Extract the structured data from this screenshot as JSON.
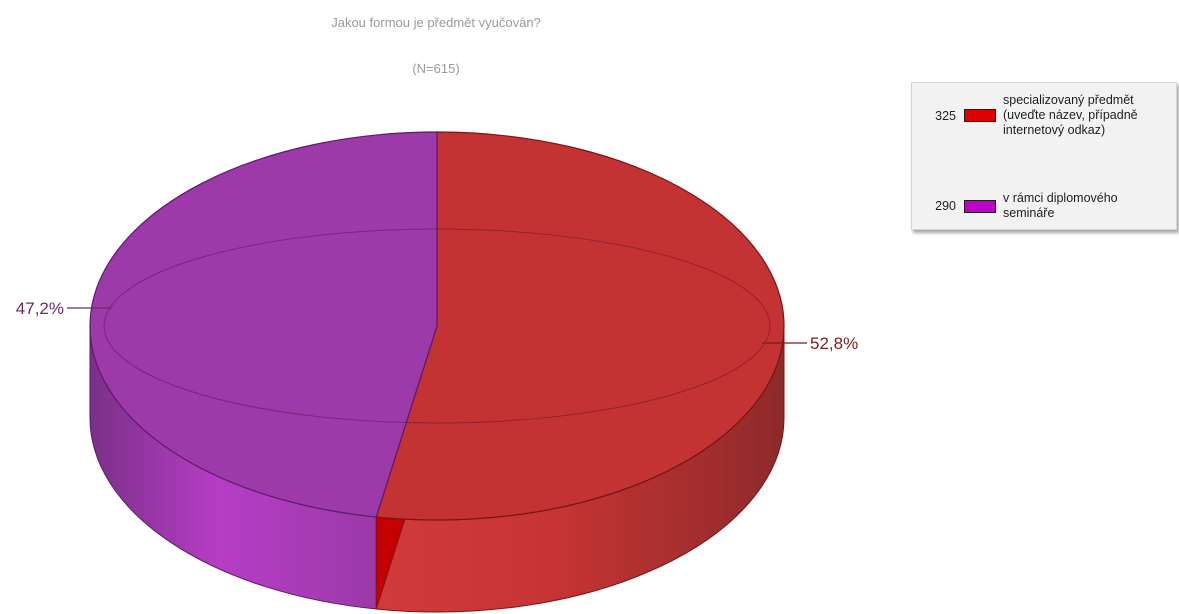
{
  "chart_data": {
    "type": "pie",
    "title": "Jakou formou je předmět vyučován?",
    "subtitle": "(N=615)",
    "slices": [
      {
        "label": "specializovaný předmět (uveďte název, případně internetový odkaz)",
        "count": 325,
        "percent_label": "52,8%",
        "value": 52.8,
        "color": "#c43333",
        "swatch_color": "#dd0000",
        "label_color": "#7a1c1c"
      },
      {
        "label": "v rámci diplomového semináře",
        "count": 290,
        "percent_label": "47,2%",
        "value": 47.2,
        "color": "#9b3aa8",
        "swatch_color": "#c000c8",
        "label_color": "#6a2a6a"
      }
    ],
    "legend_position": "right-top"
  }
}
